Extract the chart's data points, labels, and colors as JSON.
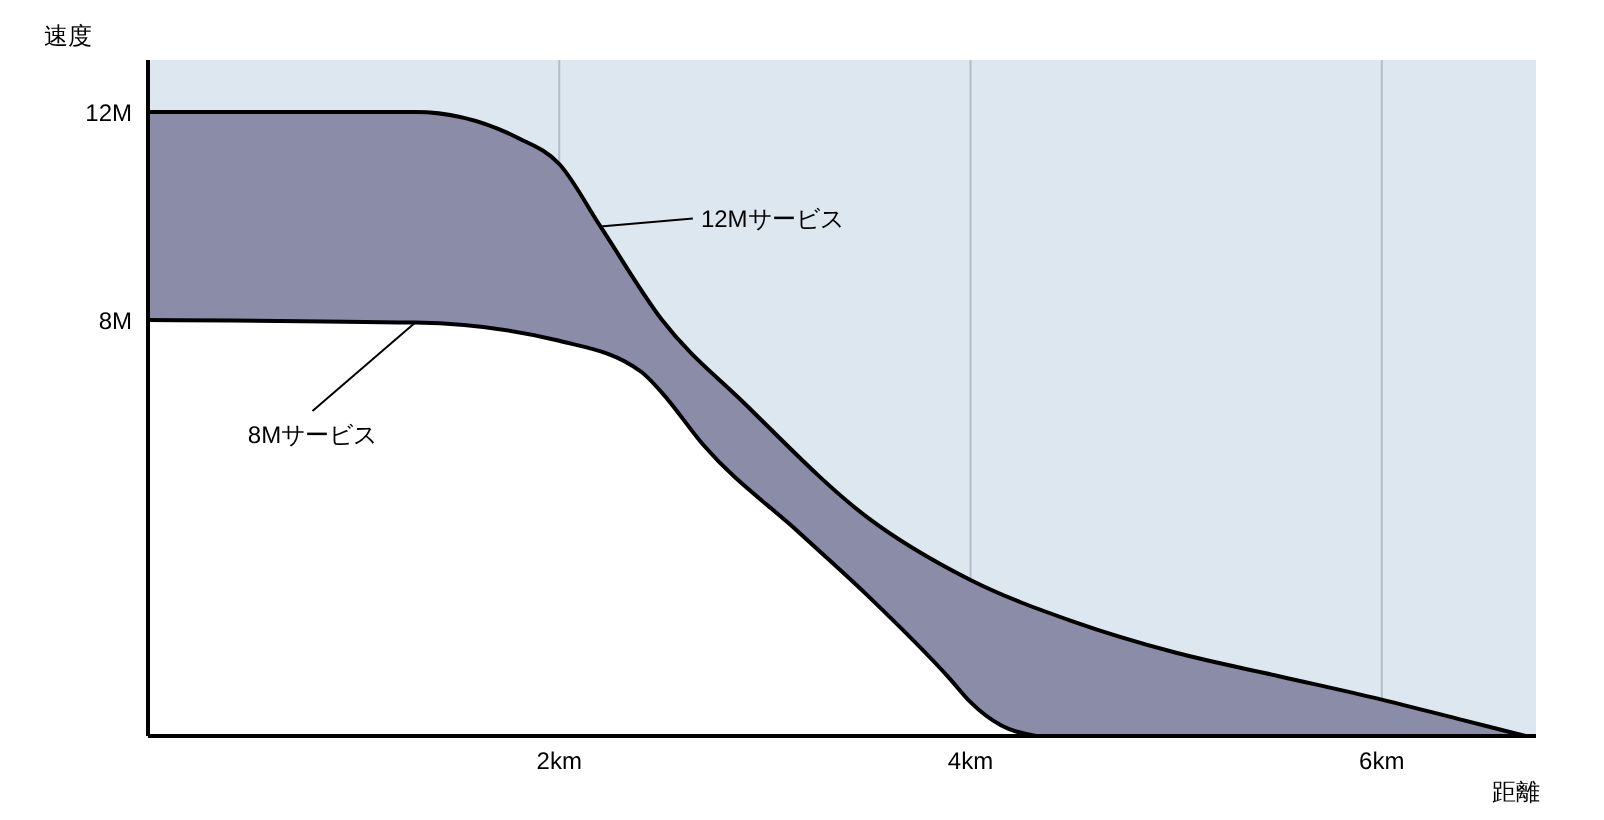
{
  "chart_data": {
    "type": "area",
    "xlabel": "距離",
    "ylabel": "速度",
    "xlim": [
      0,
      6.75
    ],
    "xticks": [
      {
        "value": 2,
        "label": "2km"
      },
      {
        "value": 4,
        "label": "4km"
      },
      {
        "value": 6,
        "label": "6km"
      }
    ],
    "ylim": [
      0,
      13
    ],
    "yticks": [
      {
        "value": 8,
        "label": "8M"
      },
      {
        "value": 12,
        "label": "12M"
      }
    ],
    "grid": "x",
    "series": [
      {
        "name": "12Mサービス",
        "color": "#8a8ca8",
        "x": [
          0,
          1.3,
          1.8,
          2,
          2.2,
          2.5,
          2.9,
          3.5,
          4,
          4.5,
          5,
          5.5,
          6,
          6.4,
          6.7
        ],
        "values": [
          12,
          12,
          11.5,
          11,
          9.8,
          8,
          6.4,
          4.2,
          3,
          2.2,
          1.6,
          1.15,
          0.7,
          0.3,
          0
        ]
      },
      {
        "name": "8Mサービス",
        "color": "#ffffff",
        "x": [
          0,
          1.3,
          2,
          2.4,
          2.5,
          2.7,
          3.17,
          3.5,
          3.9,
          4,
          4.15,
          4.32
        ],
        "values": [
          8,
          7.95,
          7.6,
          7,
          6.6,
          5.6,
          3.9,
          2.7,
          1.1,
          0.65,
          0.2,
          0
        ]
      }
    ]
  }
}
